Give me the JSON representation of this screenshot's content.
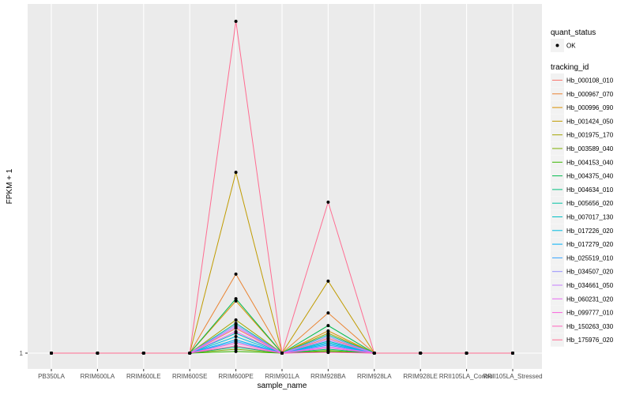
{
  "chart_data": {
    "type": "line",
    "xlabel": "sample_name",
    "ylabel": "FPKM + 1",
    "y_tick_labels": [
      "1"
    ],
    "grid": true,
    "legend_placement": "right",
    "categories": [
      "PB350LA",
      "RRIM600LA",
      "RRIM600LE",
      "RRIM600SE",
      "RRIM600PE",
      "RRIM901LA",
      "RRIM928BA",
      "RRIM928LA",
      "RRIM928LE",
      "RRII105LA_Control",
      "RRII105LA_Stressed"
    ],
    "legend_shape": {
      "title": "quant_status",
      "entries": [
        "OK"
      ]
    },
    "legend_color": {
      "title": "tracking_id"
    },
    "series": [
      {
        "name": "Hb_000108_010",
        "color": "#F8766D",
        "values": [
          1,
          1,
          1,
          1,
          8.5,
          1,
          5.5,
          1,
          1,
          1,
          1
        ]
      },
      {
        "name": "Hb_000967_070",
        "color": "#EA8331",
        "values": [
          1,
          1,
          1,
          1,
          24.8,
          1,
          13.1,
          1,
          1,
          1,
          1
        ]
      },
      {
        "name": "Hb_000996_090",
        "color": "#D89000",
        "values": [
          1,
          1,
          1,
          1,
          16.7,
          1,
          7.7,
          1,
          1,
          1,
          1
        ]
      },
      {
        "name": "Hb_001424_050",
        "color": "#C09B00",
        "values": [
          1,
          1,
          1,
          1,
          55.5,
          1,
          22.7,
          1,
          1,
          1,
          1
        ]
      },
      {
        "name": "Hb_001975_170",
        "color": "#A3A500",
        "values": [
          1,
          1,
          1,
          1,
          11,
          1,
          7,
          1,
          1,
          1,
          1
        ]
      },
      {
        "name": "Hb_003589_040",
        "color": "#7CAE00",
        "values": [
          1,
          1,
          1,
          1,
          2.2,
          1,
          1.8,
          1,
          1,
          1,
          1
        ]
      },
      {
        "name": "Hb_004153_040",
        "color": "#39B600",
        "values": [
          1,
          1,
          1,
          1,
          1.5,
          1,
          1.5,
          1,
          1,
          1,
          1
        ]
      },
      {
        "name": "Hb_004375_040",
        "color": "#00BB4E",
        "values": [
          1,
          1,
          1,
          1,
          17.4,
          1,
          9.3,
          1,
          1,
          1,
          1
        ]
      },
      {
        "name": "Hb_004634_010",
        "color": "#00BF7D",
        "values": [
          1,
          1,
          1,
          1,
          2.8,
          1,
          2.2,
          1,
          1,
          1,
          1
        ]
      },
      {
        "name": "Hb_005656_020",
        "color": "#00C1A3",
        "values": [
          1,
          1,
          1,
          1,
          10,
          1,
          6.5,
          1,
          1,
          1,
          1
        ]
      },
      {
        "name": "Hb_007017_130",
        "color": "#00BFC4",
        "values": [
          1,
          1,
          1,
          1,
          7,
          1,
          4.6,
          1,
          1,
          1,
          1
        ]
      },
      {
        "name": "Hb_017226_020",
        "color": "#00BAE0",
        "values": [
          1,
          1,
          1,
          1,
          6,
          1,
          4.2,
          1,
          1,
          1,
          1
        ]
      },
      {
        "name": "Hb_017279_020",
        "color": "#00B0F6",
        "values": [
          1,
          1,
          1,
          1,
          5,
          1,
          3.8,
          1,
          1,
          1,
          1
        ]
      },
      {
        "name": "Hb_025519_010",
        "color": "#35A2FF",
        "values": [
          1,
          1,
          1,
          1,
          4.5,
          1,
          3.4,
          1,
          1,
          1,
          1
        ]
      },
      {
        "name": "Hb_034507_020",
        "color": "#9590FF",
        "values": [
          1,
          1,
          1,
          1,
          9.5,
          1,
          6,
          1,
          1,
          1,
          1
        ]
      },
      {
        "name": "Hb_034661_050",
        "color": "#C77CFF",
        "values": [
          1,
          1,
          1,
          1,
          9,
          1,
          5,
          1,
          1,
          1,
          1
        ]
      },
      {
        "name": "Hb_060231_020",
        "color": "#E76BF3",
        "values": [
          1,
          1,
          1,
          1,
          7.5,
          1,
          3,
          1,
          1,
          1,
          1
        ]
      },
      {
        "name": "Hb_099777_010",
        "color": "#FA62DB",
        "values": [
          1,
          1,
          1,
          1,
          4,
          1,
          2.6,
          1,
          1,
          1,
          1
        ]
      },
      {
        "name": "Hb_150263_030",
        "color": "#FF62BC",
        "values": [
          1,
          1,
          1,
          1,
          3.2,
          1,
          1.2,
          1,
          1,
          1,
          1
        ]
      },
      {
        "name": "Hb_175976_020",
        "color": "#FF6C91",
        "values": [
          1,
          1,
          1,
          1,
          101,
          1,
          46.5,
          1,
          1,
          1,
          1
        ]
      }
    ]
  }
}
